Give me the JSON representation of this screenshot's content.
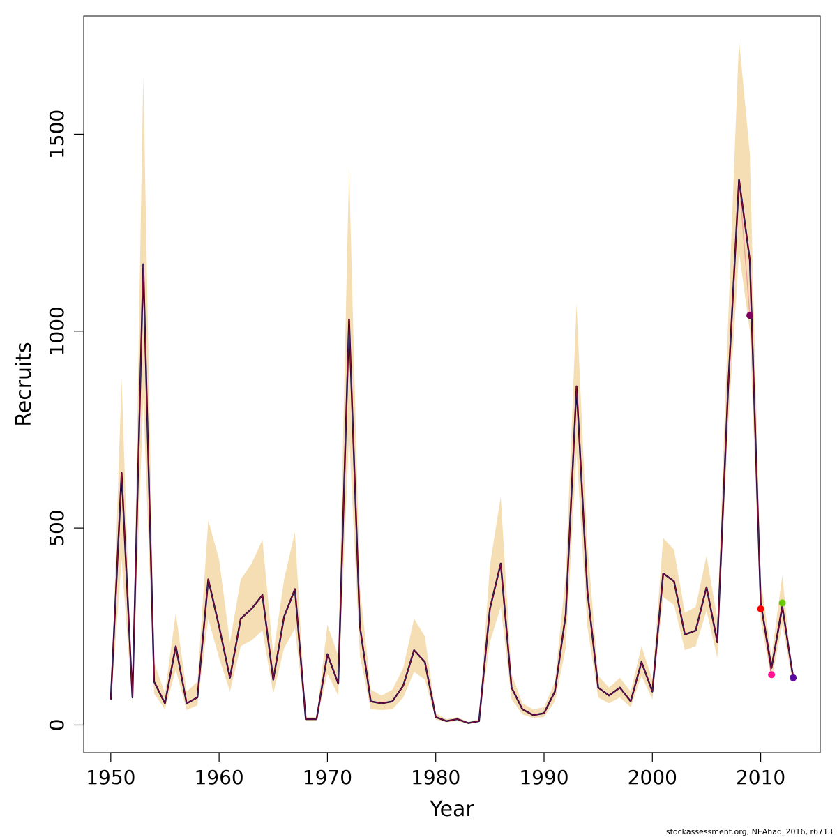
{
  "chart_data": {
    "type": "line",
    "title": "",
    "xlabel": "Year",
    "ylabel": "Recruits",
    "xlim": [
      1947.5,
      2015.5
    ],
    "ylim": [
      -70,
      1800
    ],
    "x_ticks": [
      1950,
      1960,
      1970,
      1980,
      1990,
      2000,
      2010
    ],
    "y_ticks": [
      0,
      500,
      1000,
      1500
    ],
    "grid": false,
    "legend": "none",
    "colors": {
      "band": "#f5deb3",
      "main_line": "#000040",
      "retro_lines": [
        "#f0a0a0",
        "#e87070",
        "#d94060",
        "#c02050",
        "#a01040"
      ]
    },
    "years": [
      1950,
      1951,
      1952,
      1953,
      1954,
      1955,
      1956,
      1957,
      1958,
      1959,
      1960,
      1961,
      1962,
      1963,
      1964,
      1965,
      1966,
      1967,
      1968,
      1969,
      1970,
      1971,
      1972,
      1973,
      1974,
      1975,
      1976,
      1977,
      1978,
      1979,
      1980,
      1981,
      1982,
      1983,
      1984,
      1985,
      1986,
      1987,
      1988,
      1989,
      1990,
      1991,
      1992,
      1993,
      1994,
      1995,
      1996,
      1997,
      1998,
      1999,
      2000,
      2001,
      2002,
      2003,
      2004,
      2005,
      2006,
      2007,
      2008,
      2009,
      2010,
      2011,
      2012,
      2013
    ],
    "recruits": [
      65,
      640,
      70,
      1170,
      110,
      55,
      200,
      55,
      70,
      370,
      250,
      120,
      270,
      295,
      330,
      115,
      275,
      345,
      15,
      15,
      180,
      105,
      1030,
      250,
      60,
      55,
      60,
      100,
      190,
      160,
      20,
      10,
      15,
      5,
      10,
      295,
      410,
      95,
      40,
      25,
      30,
      85,
      280,
      860,
      340,
      95,
      75,
      95,
      60,
      160,
      85,
      385,
      365,
      230,
      240,
      350,
      210,
      860,
      1385,
      1180,
      310,
      145,
      300,
      120
    ],
    "band_upper": [
      50,
      880,
      50,
      1650,
      160,
      80,
      285,
      85,
      110,
      520,
      420,
      210,
      370,
      410,
      470,
      180,
      370,
      490,
      20,
      20,
      255,
      175,
      1415,
      350,
      90,
      75,
      90,
      145,
      270,
      225,
      30,
      15,
      20,
      8,
      15,
      405,
      580,
      130,
      55,
      40,
      45,
      110,
      380,
      1070,
      460,
      125,
      95,
      120,
      85,
      200,
      115,
      475,
      445,
      285,
      300,
      430,
      270,
      1030,
      1740,
      1450,
      370,
      175,
      380,
      100
    ],
    "band_lower": [
      50,
      420,
      50,
      830,
      80,
      40,
      140,
      38,
      50,
      270,
      170,
      85,
      200,
      215,
      240,
      80,
      195,
      245,
      10,
      10,
      130,
      75,
      735,
      175,
      40,
      38,
      40,
      70,
      135,
      115,
      14,
      7,
      10,
      3,
      7,
      210,
      300,
      65,
      27,
      18,
      20,
      60,
      195,
      690,
      250,
      70,
      55,
      70,
      45,
      125,
      65,
      325,
      305,
      190,
      200,
      290,
      170,
      760,
      1200,
      1000,
      265,
      115,
      255,
      100
    ],
    "retro_terminal_points": [
      {
        "year": 2009,
        "value": 1040,
        "color": "#800060"
      },
      {
        "year": 2010,
        "value": 295,
        "color": "#ff0000"
      },
      {
        "year": 2011,
        "value": 128,
        "color": "#ff1493"
      },
      {
        "year": 2012,
        "value": 310,
        "color": "#66cc00"
      },
      {
        "year": 2013,
        "value": 120,
        "color": "#5a0aa0"
      }
    ],
    "annotations": [
      "stockassessment.org, NEAhad_2016, r6713"
    ]
  }
}
